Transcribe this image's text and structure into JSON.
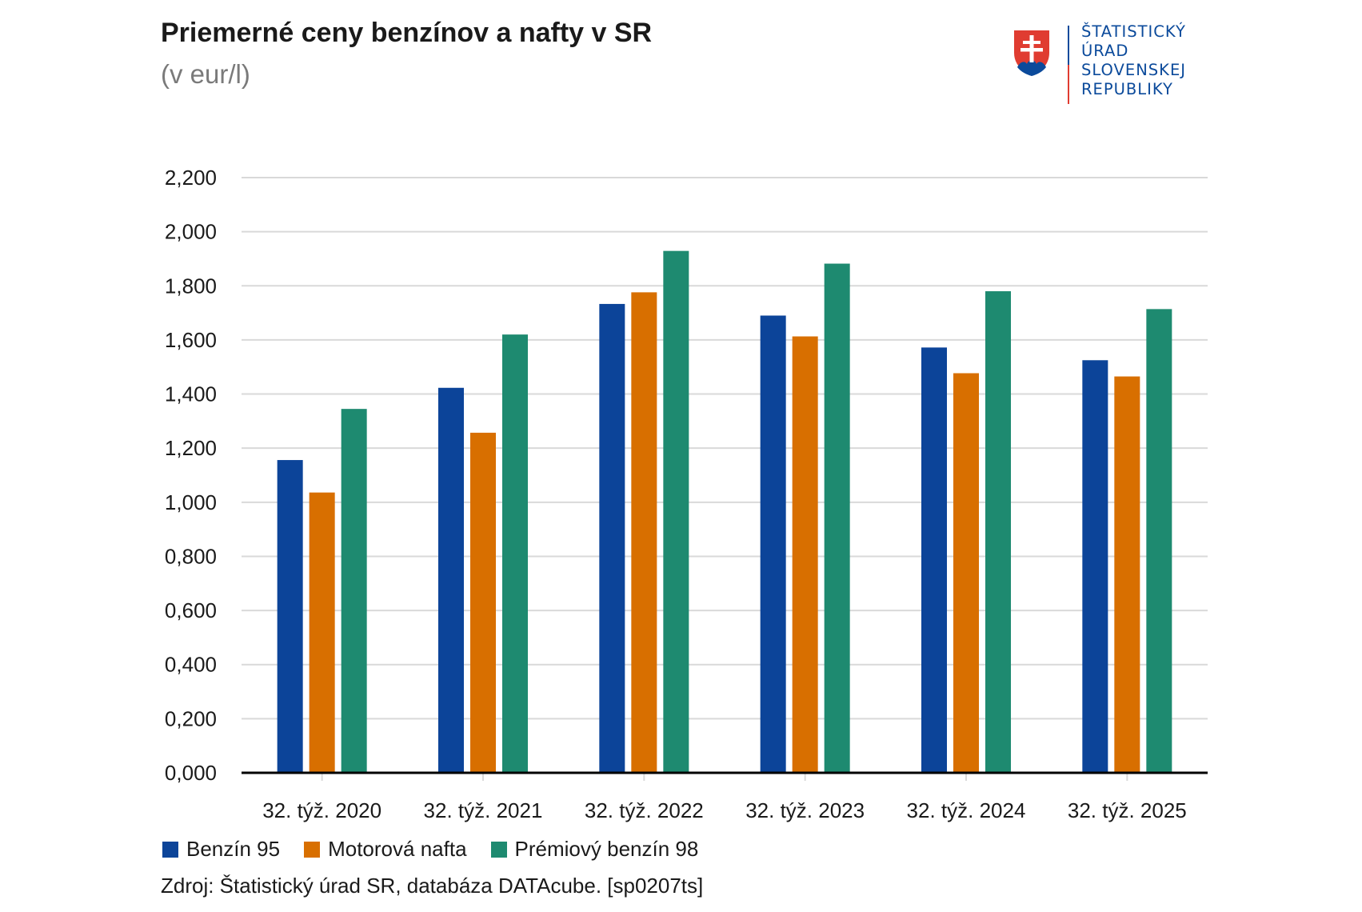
{
  "chart_data": {
    "type": "bar",
    "title": "Priemerné ceny benzínov a nafty v SR",
    "subtitle": "(v eur/l)",
    "categories": [
      "32. týž. 2020",
      "32. týž. 2021",
      "32. týž. 2022",
      "32. týž. 2023",
      "32. týž. 2024",
      "32. týž. 2025"
    ],
    "series": [
      {
        "name": "Benzín 95",
        "color": "#0c4499",
        "values": [
          1.156,
          1.423,
          1.733,
          1.69,
          1.572,
          1.525
        ]
      },
      {
        "name": "Motorová nafta",
        "color": "#d86f00",
        "values": [
          1.036,
          1.257,
          1.776,
          1.613,
          1.477,
          1.465
        ]
      },
      {
        "name": "Prémiový benzín 98",
        "color": "#1e8a70",
        "values": [
          1.345,
          1.62,
          1.929,
          1.882,
          1.78,
          1.714
        ]
      }
    ],
    "yticks": [
      "0,000",
      "0,200",
      "0,400",
      "0,600",
      "0,800",
      "1,000",
      "1,200",
      "1,400",
      "1,600",
      "1,800",
      "2,000",
      "2,200"
    ],
    "ylim": [
      0,
      2.2
    ],
    "grid": true,
    "legend_position": "bottom-left"
  },
  "source": "Zdroj: Štatistický úrad SR, databáza DATAcube. [sp0207ts]",
  "logo": {
    "lines": [
      "ŠTATISTICKÝ",
      "ÚRAD",
      "SLOVENSKEJ",
      "REPUBLIKY"
    ]
  }
}
